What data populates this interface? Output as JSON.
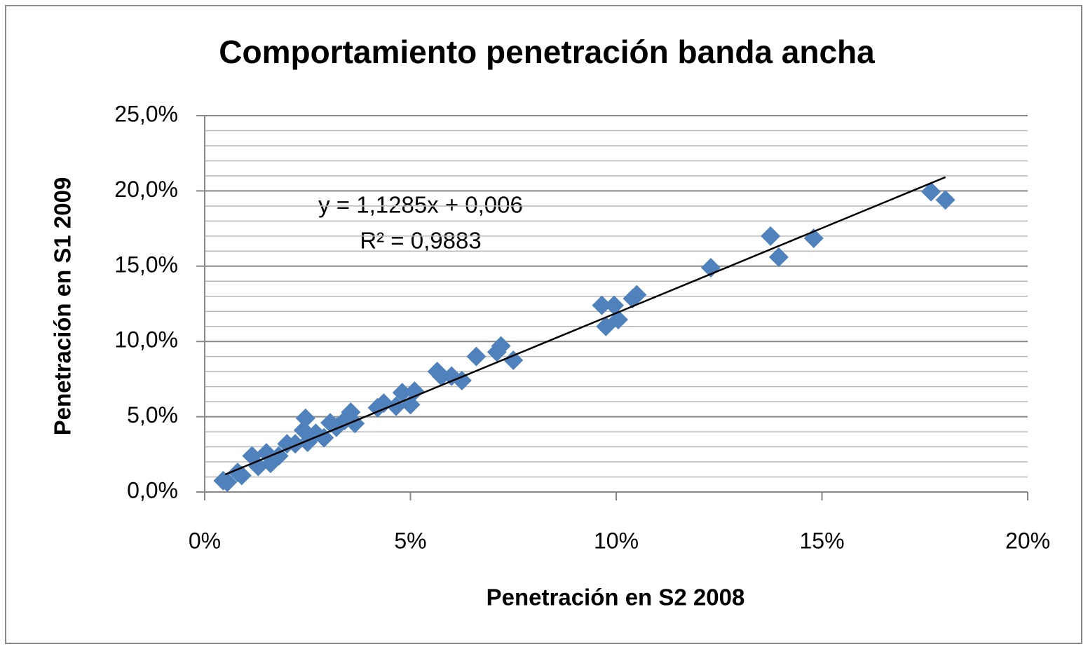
{
  "chart_data": {
    "type": "scatter",
    "title": "Comportamiento penetración banda ancha",
    "x_label": "Penetración en S2 2008",
    "y_label": "Penetración en S1 2009",
    "xlim": [
      0,
      20
    ],
    "ylim": [
      0,
      25
    ],
    "xticks": [
      {
        "value": 0,
        "label": "0%"
      },
      {
        "value": 5,
        "label": "5%"
      },
      {
        "value": 10,
        "label": "10%"
      },
      {
        "value": 15,
        "label": "15%"
      },
      {
        "value": 20,
        "label": "20%"
      }
    ],
    "yticks": [
      {
        "value": 0,
        "label": "0,0%"
      },
      {
        "value": 5,
        "label": "5,0%"
      },
      {
        "value": 10,
        "label": "10,0%"
      },
      {
        "value": 15,
        "label": "15,0%"
      },
      {
        "value": 20,
        "label": "20,0%"
      },
      {
        "value": 25,
        "label": "25,0%"
      }
    ],
    "grid": true,
    "minor_grid_divisions": 5,
    "color": "#4f81bd",
    "x": [
      0.45,
      0.55,
      0.8,
      0.9,
      1.15,
      1.3,
      1.5,
      1.6,
      1.8,
      2.0,
      2.2,
      2.45,
      2.4,
      2.5,
      2.7,
      2.9,
      3.05,
      3.2,
      3.4,
      3.55,
      3.65,
      4.2,
      4.35,
      4.65,
      4.8,
      5.0,
      5.1,
      5.65,
      5.75,
      6.0,
      6.25,
      6.6,
      7.1,
      7.2,
      7.5,
      9.65,
      9.95,
      9.75,
      10.05,
      10.4,
      10.5,
      12.3,
      13.75,
      13.95,
      14.8,
      17.65,
      18.0
    ],
    "values": [
      0.75,
      0.65,
      1.3,
      1.1,
      2.4,
      1.7,
      2.6,
      1.9,
      2.4,
      3.2,
      3.2,
      4.9,
      4.1,
      3.3,
      3.9,
      3.6,
      4.6,
      4.3,
      4.75,
      5.3,
      4.55,
      5.6,
      5.9,
      5.7,
      6.6,
      5.8,
      6.7,
      8.0,
      7.7,
      7.7,
      7.4,
      9.0,
      9.3,
      9.7,
      8.75,
      12.4,
      12.4,
      11.0,
      11.45,
      12.85,
      13.1,
      14.9,
      17.0,
      15.6,
      16.85,
      19.95,
      19.4
    ],
    "trendline": {
      "slope": 1.1285,
      "intercept": 0.6,
      "xlim": [
        0.5,
        18
      ],
      "color": "#000000",
      "equation": "y = 1,1285x + 0,006",
      "r_squared": "R² = 0,9883"
    }
  }
}
